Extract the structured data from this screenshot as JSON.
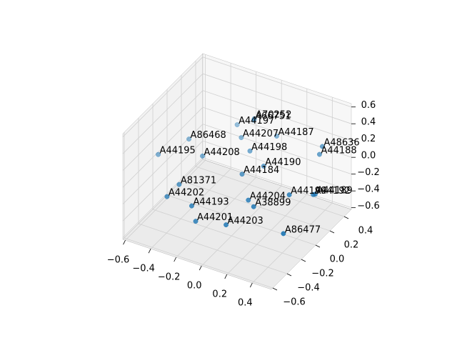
{
  "chart_data": {
    "type": "scatter3d",
    "series": [
      {
        "color": "#1f77b4",
        "labels": [
          "A44197",
          "A70252",
          "A66751",
          "A44207",
          "A44187",
          "A86468",
          "A44195",
          "A44208",
          "A44198",
          "A48636",
          "A44188",
          "A44190",
          "A44184",
          "A81371",
          "A44202",
          "A44193",
          "A44204",
          "A38899",
          "A44199",
          "A44189",
          "A44192",
          "A44201",
          "A44203",
          "A86477"
        ],
        "x": [
          -0.31,
          -0.18,
          -0.18,
          -0.21,
          -0.01,
          -0.51,
          -0.6,
          -0.33,
          -0.08,
          0.35,
          0.35,
          0.09,
          0.01,
          -0.3,
          -0.3,
          -0.1,
          0.2,
          0.27,
          0.41,
          0.53,
          0.52,
          -0.08,
          0.12,
          0.51
        ],
        "y": [
          0.43,
          0.44,
          0.43,
          0.31,
          0.45,
          0.11,
          -0.16,
          -0.02,
          0.2,
          0.45,
          0.41,
          0.09,
          -0.07,
          -0.4,
          -0.57,
          -0.58,
          -0.32,
          -0.37,
          -0.12,
          0.03,
          0.02,
          -0.56,
          -0.49,
          -0.38
        ],
        "z": [
          0.01,
          0.14,
          0.13,
          0.01,
          0.01,
          0.01,
          0.01,
          0.01,
          0.01,
          0.07,
          0.01,
          0.01,
          0.01,
          0.01,
          0.01,
          0.01,
          0.01,
          0.01,
          0.01,
          -0.05,
          -0.05,
          -0.18,
          -0.18,
          -0.18
        ]
      }
    ],
    "xlim": [
      -0.62,
      0.55
    ],
    "ylim": [
      -0.62,
      0.5
    ],
    "zlim": [
      -0.62,
      0.64
    ],
    "xticks": [
      {
        "value": -0.6,
        "label": "−0.6"
      },
      {
        "value": -0.4,
        "label": "−0.4"
      },
      {
        "value": -0.2,
        "label": "−0.2"
      },
      {
        "value": 0,
        "label": "0.0"
      },
      {
        "value": 0.2,
        "label": "0.2"
      },
      {
        "value": 0.4,
        "label": "0.4"
      }
    ],
    "yticks": [
      {
        "value": -0.6,
        "label": "−0.6"
      },
      {
        "value": -0.4,
        "label": "−0.4"
      },
      {
        "value": -0.2,
        "label": "−0.2"
      },
      {
        "value": 0,
        "label": "0.0"
      },
      {
        "value": 0.2,
        "label": "0.2"
      },
      {
        "value": 0.4,
        "label": "0.4"
      }
    ],
    "zticks": [
      {
        "value": -0.6,
        "label": "−0.6"
      },
      {
        "value": -0.4,
        "label": "−0.4"
      },
      {
        "value": -0.2,
        "label": "−0.2"
      },
      {
        "value": 0,
        "label": "0.0"
      },
      {
        "value": 0.2,
        "label": "0.2"
      },
      {
        "value": 0.4,
        "label": "0.4"
      },
      {
        "value": 0.6,
        "label": "0.6"
      }
    ],
    "grid": true
  }
}
